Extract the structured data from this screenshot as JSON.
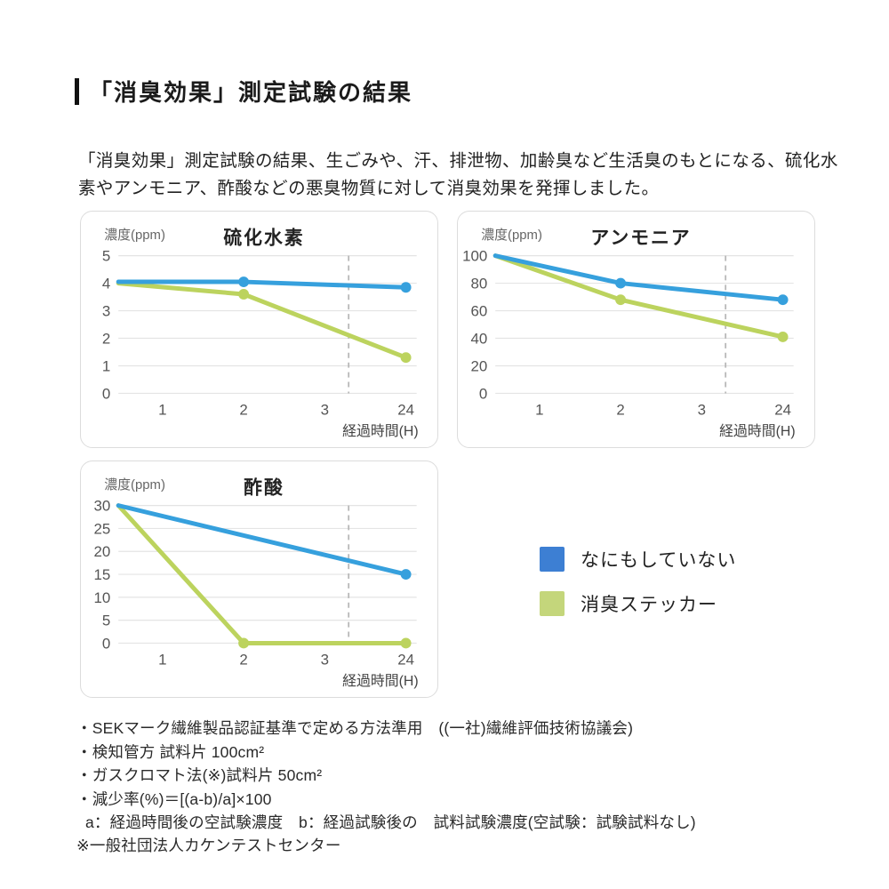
{
  "page": {
    "title": "「消臭効果」測定試験の結果",
    "intro": "「消臭効果」測定試験の結果、生ごみや、汗、排泄物、加齢臭など生活臭のもとになる、硫化水素やアンモニア、酢酸などの悪臭物質に対して消臭効果を発揮しました。"
  },
  "colors": {
    "line_blue": "#36A0DD",
    "line_green": "#BCD35E",
    "legend_blue": "#3D7FD3",
    "legend_green": "#C4D67B",
    "grid": "#E4E4E4",
    "dashed": "#B8B8B8",
    "axis_text": "#555555",
    "axis_label_text": "#444444",
    "chart_title_text": "#222222",
    "y_axis_unit_text": "#666666"
  },
  "legend": {
    "items": [
      {
        "label": "なにもしていない",
        "color": "#3D7FD3"
      },
      {
        "label": "消臭ステッカー",
        "color": "#C4D67B"
      }
    ]
  },
  "chart_data": [
    {
      "type": "line",
      "title": "硫化水素",
      "ylabel": "濃度(ppm)",
      "xlabel": "経過時間(H)",
      "ylim": [
        0,
        5
      ],
      "y_ticks": [
        0,
        1,
        2,
        3,
        4,
        5
      ],
      "x_ticks": [
        "1",
        "2",
        "3",
        "24"
      ],
      "x_fractions": {
        "0": 0,
        "1": 0.148,
        "2": 0.42,
        "3": 0.692,
        "24": 0.964
      },
      "dashed_vline_x_fraction": 0.772,
      "grid": "horizontal only",
      "series": [
        {
          "name": "なにもしていない",
          "color": "blue",
          "points": [
            {
              "t": "0",
              "v": 4.05,
              "dot": false
            },
            {
              "t": "2",
              "v": 4.05,
              "dot": true
            },
            {
              "t": "24",
              "v": 3.85,
              "dot": true
            }
          ]
        },
        {
          "name": "消臭ステッカー",
          "color": "green",
          "points": [
            {
              "t": "0",
              "v": 4.0,
              "dot": false
            },
            {
              "t": "2",
              "v": 3.6,
              "dot": true
            },
            {
              "t": "24",
              "v": 1.3,
              "dot": true
            }
          ]
        }
      ]
    },
    {
      "type": "line",
      "title": "アンモニア",
      "ylabel": "濃度(ppm)",
      "xlabel": "経過時間(H)",
      "ylim": [
        0,
        100
      ],
      "y_ticks": [
        0,
        20,
        40,
        60,
        80,
        100
      ],
      "x_ticks": [
        "1",
        "2",
        "3",
        "24"
      ],
      "x_fractions": {
        "0": 0,
        "1": 0.148,
        "2": 0.42,
        "3": 0.692,
        "24": 0.964
      },
      "dashed_vline_x_fraction": 0.772,
      "grid": "horizontal only",
      "series": [
        {
          "name": "なにもしていない",
          "color": "blue",
          "points": [
            {
              "t": "0",
              "v": 100,
              "dot": false
            },
            {
              "t": "2",
              "v": 80,
              "dot": true
            },
            {
              "t": "24",
              "v": 68,
              "dot": true
            }
          ]
        },
        {
          "name": "消臭ステッカー",
          "color": "green",
          "points": [
            {
              "t": "0",
              "v": 100,
              "dot": false
            },
            {
              "t": "2",
              "v": 68,
              "dot": true
            },
            {
              "t": "24",
              "v": 41,
              "dot": true
            }
          ]
        }
      ]
    },
    {
      "type": "line",
      "title": "酢酸",
      "ylabel": "濃度(ppm)",
      "xlabel": "経過時間(H)",
      "ylim": [
        0,
        30
      ],
      "y_ticks": [
        0,
        5,
        10,
        15,
        20,
        25,
        30
      ],
      "x_ticks": [
        "1",
        "2",
        "3",
        "24"
      ],
      "x_fractions": {
        "0": 0,
        "1": 0.148,
        "2": 0.42,
        "3": 0.692,
        "24": 0.964
      },
      "dashed_vline_x_fraction": 0.772,
      "grid": "horizontal only",
      "series": [
        {
          "name": "なにもしていない",
          "color": "blue",
          "points": [
            {
              "t": "0",
              "v": 30,
              "dot": false
            },
            {
              "t": "24",
              "v": 15,
              "dot": true
            }
          ]
        },
        {
          "name": "消臭ステッカー",
          "color": "green",
          "points": [
            {
              "t": "0",
              "v": 30,
              "dot": false
            },
            {
              "t": "2",
              "v": 0,
              "dot": true
            },
            {
              "t": "24",
              "v": 0,
              "dot": true
            }
          ]
        }
      ]
    }
  ],
  "footnotes": {
    "lines": [
      "・SEKマーク繊維製品認証基準で定める方法準用　((一社)繊維評価技術協議会)",
      "・検知管方 試料片 100cm²",
      "・ガスクロマト法(※)試料片 50cm²",
      "・減少率(%)＝[(a-b)/a]×100",
      "a：経過時間後の空試験濃度　b：経過試験後の　試料試験濃度(空試験：試験試料なし)"
    ],
    "note": "※一般社団法人カケンテストセンター"
  }
}
